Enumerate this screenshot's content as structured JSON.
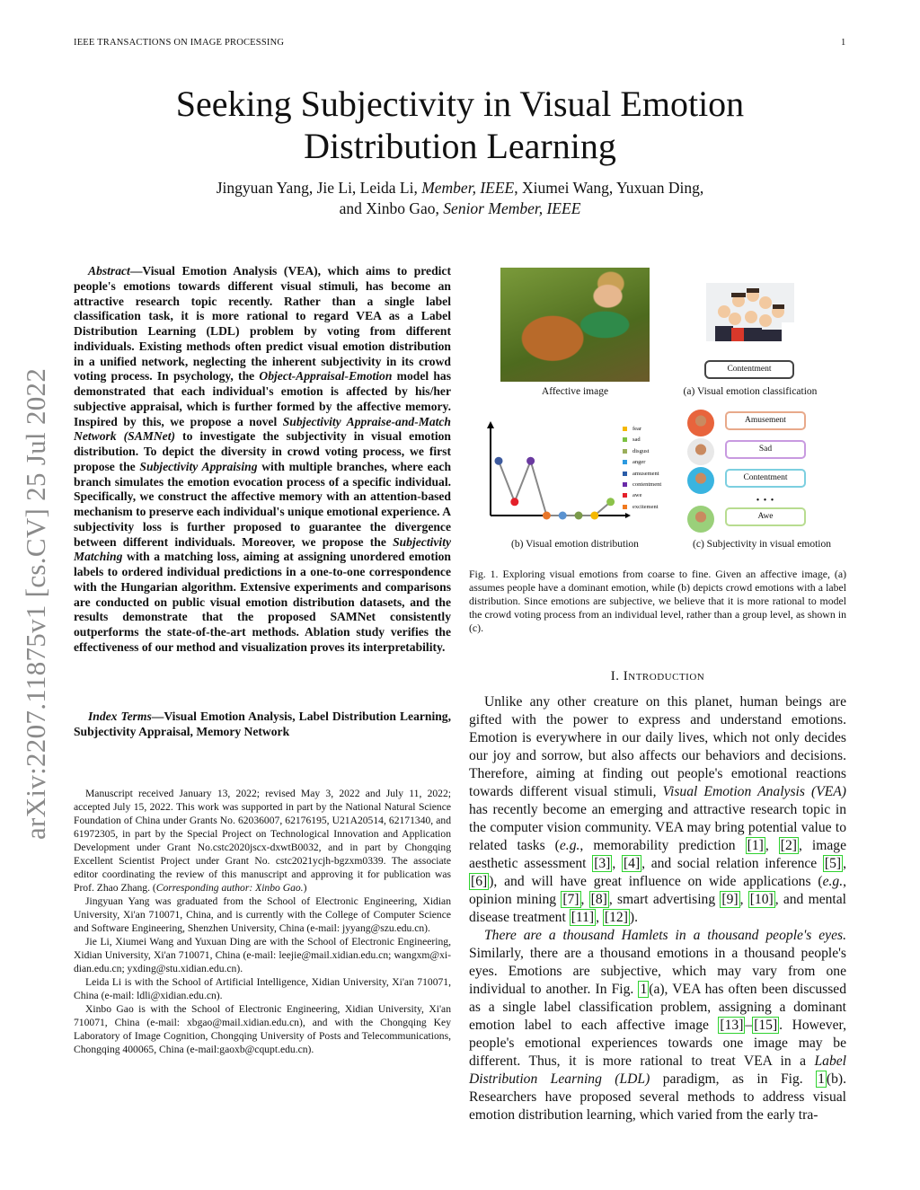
{
  "header": {
    "journal": "IEEE TRANSACTIONS ON IMAGE PROCESSING",
    "page_number": "1"
  },
  "title": {
    "line1": "Seeking Subjectivity in Visual Emotion",
    "line2": "Distribution Learning"
  },
  "authors": {
    "line1": [
      {
        "t": "Jingyuan Yang,  Jie Li,  Leida Li, "
      },
      {
        "i": "Member, IEEE"
      },
      {
        "t": ", Xiumei Wang, Yuxuan Ding,"
      }
    ],
    "line2": [
      {
        "t": "and Xinbo Gao, "
      },
      {
        "i": "Senior Member, IEEE"
      }
    ]
  },
  "arxiv_stamp": "arXiv:2207.11875v1  [cs.CV]  25 Jul 2022",
  "abstract": [
    {
      "i": "Abstract"
    },
    {
      "t": "—Visual Emotion Analysis (VEA), which aims to predict people's emotions towards different visual stimuli, has become an attractive research topic recently. Rather than a single label classification task, it is more rational to regard VEA as a Label Distribution Learning (LDL) problem by voting from different individuals. Existing methods often predict visual emotion distribution in a unified network, neglecting the inherent subjectivity in its crowd voting process. In psychology, the "
    },
    {
      "i": "Object-Appraisal-Emotion"
    },
    {
      "t": " model has demonstrated that each individual's emotion is affected by his/her subjective appraisal, which is further formed by the affective memory. Inspired by this, we propose a novel "
    },
    {
      "i": "Subjectivity Appraise-and-Match Network (SAMNet)"
    },
    {
      "t": " to investigate the subjectivity in visual emotion distribution. To depict the diversity in crowd voting process, we first propose the "
    },
    {
      "i": "Subjectivity Appraising"
    },
    {
      "t": " with multiple branches, where each branch simulates the emotion evocation process of a specific individual. Specifically, we construct the affective memory with an attention-based mechanism to preserve each individual's unique emotional experience. A subjectivity loss is further proposed to guarantee the divergence between different individuals. Moreover, we propose the "
    },
    {
      "i": "Subjectivity Matching"
    },
    {
      "t": " with a matching loss, aiming at assigning unordered emotion labels to ordered individual predictions in a one-to-one correspondence with the Hungarian algorithm. Extensive experiments and comparisons are conducted on public visual emotion distribution datasets, and the results demonstrate that the proposed SAMNet consistently outperforms the state-of-the-art methods. Ablation study verifies the effectiveness of our method and visualization proves its interpretability."
    }
  ],
  "index_terms": [
    {
      "i": "Index Terms"
    },
    {
      "t": "—Visual Emotion Analysis, Label Distribution Learning, Subjectivity Appraisal, Memory Network"
    }
  ],
  "footnotes": [
    [
      {
        "t": "Manuscript received January 13, 2022; revised May 3, 2022 and July 11, 2022; accepted July 15, 2022. This work was supported in part by the National Natural Science Foundation of China under Grants No. 62036007, 62176195, U21A20514, 62171340, and 61972305, in part by the Special Project on Technological Innovation and Application Development under Grant No.cstc2020jscx-dxwtB0032, and in part by Chongqing Excellent Scientist Project under Grant No. cstc2021ycjh-bgzxm0339. The associate editor coordinating the review of this manuscript and approving it for publication was Prof. Zhao Zhang. ("
      },
      {
        "i": "Corresponding author: Xinbo Gao."
      },
      {
        "t": ")"
      }
    ],
    [
      {
        "t": "Jingyuan Yang was graduated from the School of Electronic Engineering, Xidian University, Xi'an 710071, China, and is currently with the College of Computer Science and Software Engineering, Shenzhen University, China (e-mail: jyyang@szu.edu.cn)."
      }
    ],
    [
      {
        "t": "Jie Li, Xiumei Wang and Yuxuan Ding are with the School of Electronic Engineering, Xidian University, Xi'an 710071, China (e-mail: leejie@mail.xidian.edu.cn; wangxm@xi-dian.edu.cn; yxding@stu.xidian.edu.cn)."
      }
    ],
    [
      {
        "t": "Leida Li is with the School of Artificial Intelligence, Xidian University, Xi'an 710071, China (e-mail: ldli@xidian.edu.cn)."
      }
    ],
    [
      {
        "t": "Xinbo Gao is with the School of Electronic Engineering, Xidian University, Xi'an 710071, China (e-mail: xbgao@mail.xidian.edu.cn), and with the Chongqing Key Laboratory of Image Cognition, Chongqing University of Posts and Telecommunications, Chongqing 400065, China (e-mail:gaoxb@cqupt.edu.cn)."
      }
    ]
  ],
  "figure": {
    "affective_image_caption": "Affective image",
    "classification_label": "Contentment",
    "sub_a": "(a) Visual emotion classification",
    "sub_b": "(b) Visual emotion distribution",
    "sub_c": "(c) Subjectivity in visual emotion",
    "legend": [
      {
        "label": "fear",
        "color": "#f5b800"
      },
      {
        "label": "sad",
        "color": "#7cc242"
      },
      {
        "label": "disgust",
        "color": "#9aae5a"
      },
      {
        "label": "anger",
        "color": "#2c9ae0"
      },
      {
        "label": "amusement",
        "color": "#2a5ca8"
      },
      {
        "label": "contentment",
        "color": "#6a2aa8"
      },
      {
        "label": "awe",
        "color": "#e4202a"
      },
      {
        "label": "excitement",
        "color": "#f07a20"
      }
    ],
    "distribution_points": [
      {
        "color": "#3d5a9e",
        "value": 0.8
      },
      {
        "color": "#e4202a",
        "value": 0.2
      },
      {
        "color": "#6a3aa0",
        "value": 0.8
      },
      {
        "color": "#e8762a",
        "value": 0
      },
      {
        "color": "#5a92d0",
        "value": 0
      },
      {
        "color": "#7a9a4a",
        "value": 0
      },
      {
        "color": "#f5b800",
        "value": 0
      },
      {
        "color": "#8cc24a",
        "value": 0.2
      }
    ],
    "individuals": [
      {
        "label": "Amusement",
        "color": "#e8a98a",
        "avatar": "#e8643c"
      },
      {
        "label": "Sad",
        "color": "#c89ae0",
        "avatar": "#e8e8e8"
      },
      {
        "label": "Contentment",
        "color": "#7ccfe0",
        "avatar": "#3ab4e0"
      },
      {
        "label": "Awe",
        "color": "#b8dc90",
        "avatar": "#9ad07a"
      }
    ],
    "ellipsis": "• • •",
    "caption": "Fig. 1.  Exploring visual emotions from coarse to fine. Given an affective image, (a) assumes people have a dominant emotion, while (b) depicts crowd emotions with a label distribution. Since emotions are subjective, we believe that it is more rational to model the crowd voting process from an individual level, rather than a group level, as shown in (c)."
  },
  "section_heading": "I. Introduction",
  "intro": [
    [
      {
        "t": "Unlike any other creature on this planet, human beings are gifted with the power to express and understand emotions. Emotion is everywhere in our daily lives, which not only decides our joy and sorrow, but also affects our behaviors and decisions. Therefore, aiming at finding out people's emotional reactions towards different visual stimuli, "
      },
      {
        "i": "Visual Emotion Analysis (VEA)"
      },
      {
        "t": " has recently become an emerging and attractive research topic in the computer vision community. VEA may bring potential value to related tasks ("
      },
      {
        "i": "e.g."
      },
      {
        "t": ", memorability prediction "
      },
      {
        "c": "[1]"
      },
      {
        "t": ", "
      },
      {
        "c": "[2]"
      },
      {
        "t": ", image aesthetic assessment "
      },
      {
        "c": "[3]"
      },
      {
        "t": ", "
      },
      {
        "c": "[4]"
      },
      {
        "t": ", and social relation inference "
      },
      {
        "c": "[5]"
      },
      {
        "t": ", "
      },
      {
        "c": "[6]"
      },
      {
        "t": "), and will have great influence on wide applications ("
      },
      {
        "i": "e.g."
      },
      {
        "t": ", opinion mining "
      },
      {
        "c": "[7]"
      },
      {
        "t": ", "
      },
      {
        "c": "[8]"
      },
      {
        "t": ", smart advertising "
      },
      {
        "c": "[9]"
      },
      {
        "t": ", "
      },
      {
        "c": "[10]"
      },
      {
        "t": ", and mental disease treatment "
      },
      {
        "c": "[11]"
      },
      {
        "t": ", "
      },
      {
        "c": "[12]"
      },
      {
        "t": ")."
      }
    ],
    [
      {
        "i": "There are a thousand Hamlets in a thousand people's eyes."
      },
      {
        "t": " Similarly, there are a thousand emotions in a thousand people's eyes. Emotions are subjective, which may vary from one individual to another. In Fig. "
      },
      {
        "c": "1"
      },
      {
        "t": "(a), VEA has often been discussed as a single label classification problem, assigning a dominant emotion label to each affective image "
      },
      {
        "c": "[13]"
      },
      {
        "t": "–"
      },
      {
        "c": "[15]"
      },
      {
        "t": ". However, people's emotional experiences towards one image may be different. Thus, it is more rational to treat VEA in a "
      },
      {
        "i": "Label Distribution Learning (LDL)"
      },
      {
        "t": " paradigm, as in Fig. "
      },
      {
        "c": "1"
      },
      {
        "t": "(b). Researchers have proposed several methods to address visual emotion distribution learning, which varied from the early tra-"
      }
    ]
  ]
}
